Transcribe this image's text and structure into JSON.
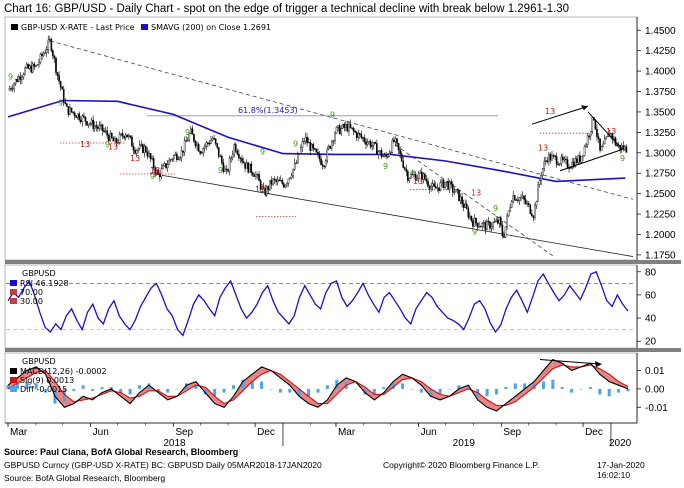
{
  "title": "Chart 16: GBP/USD - Daily Chart - spot on the edge of trigger a technical decline with break below 1.2961-1.30",
  "colors": {
    "price": "#000000",
    "sma": "#1a10c8",
    "rsi": "#1a10c8",
    "macd": "#000000",
    "signal": "#d01010",
    "diff": "#4fa3e8",
    "td_green": "#3a9a1a",
    "td_red": "#d01010",
    "ref_red": "#c04040",
    "fib": "#8888dd"
  },
  "chart_data": [
    {
      "type": "candlestick",
      "legend": {
        "price": "GBP-USD X-RATE - Last Price",
        "sma": "SMAVG (200)  on Close 1.2691"
      },
      "ylim": [
        1.17,
        1.465
      ],
      "yticks": [
        "1.4500",
        "1.4250",
        "1.4000",
        "1.3750",
        "1.3500",
        "1.3250",
        "1.3000",
        "1.2750",
        "1.2500",
        "1.2250",
        "1.2000",
        "1.1750"
      ],
      "x_months": [
        "Mar",
        "Jun",
        "Sep",
        "Dec",
        "Mar",
        "Jun",
        "Sep",
        "Dec"
      ],
      "x_years": [
        "2018",
        "2019",
        "2020"
      ],
      "close_path": [
        [
          "2018-03-05",
          1.382
        ],
        [
          "2018-03-20",
          1.402
        ],
        [
          "2018-04-01",
          1.405
        ],
        [
          "2018-04-17",
          1.437
        ],
        [
          "2018-04-25",
          1.396
        ],
        [
          "2018-05-05",
          1.353
        ],
        [
          "2018-05-15",
          1.348
        ],
        [
          "2018-06-01",
          1.336
        ],
        [
          "2018-06-15",
          1.327
        ],
        [
          "2018-06-28",
          1.312
        ],
        [
          "2018-07-10",
          1.325
        ],
        [
          "2018-07-20",
          1.305
        ],
        [
          "2018-08-01",
          1.305
        ],
        [
          "2018-08-15",
          1.272
        ],
        [
          "2018-08-31",
          1.295
        ],
        [
          "2018-09-10",
          1.3
        ],
        [
          "2018-09-20",
          1.325
        ],
        [
          "2018-10-01",
          1.303
        ],
        [
          "2018-10-15",
          1.318
        ],
        [
          "2018-10-30",
          1.273
        ],
        [
          "2018-11-08",
          1.31
        ],
        [
          "2018-11-20",
          1.285
        ],
        [
          "2018-12-01",
          1.275
        ],
        [
          "2018-12-11",
          1.25
        ],
        [
          "2018-12-20",
          1.265
        ],
        [
          "2019-01-03",
          1.262
        ],
        [
          "2019-01-15",
          1.285
        ],
        [
          "2019-01-25",
          1.318
        ],
        [
          "2019-02-05",
          1.3
        ],
        [
          "2019-02-15",
          1.287
        ],
        [
          "2019-02-28",
          1.326
        ],
        [
          "2019-03-13",
          1.332
        ],
        [
          "2019-03-25",
          1.322
        ],
        [
          "2019-04-10",
          1.31
        ],
        [
          "2019-04-25",
          1.293
        ],
        [
          "2019-05-05",
          1.315
        ],
        [
          "2019-05-20",
          1.272
        ],
        [
          "2019-06-05",
          1.272
        ],
        [
          "2019-06-18",
          1.255
        ],
        [
          "2019-07-01",
          1.264
        ],
        [
          "2019-07-15",
          1.248
        ],
        [
          "2019-07-31",
          1.216
        ],
        [
          "2019-08-15",
          1.21
        ],
        [
          "2019-08-30",
          1.216
        ],
        [
          "2019-09-03",
          1.196
        ],
        [
          "2019-09-13",
          1.248
        ],
        [
          "2019-09-25",
          1.243
        ],
        [
          "2019-10-07",
          1.225
        ],
        [
          "2019-10-15",
          1.275
        ],
        [
          "2019-10-22",
          1.295
        ],
        [
          "2019-11-01",
          1.292
        ],
        [
          "2019-11-15",
          1.285
        ],
        [
          "2019-11-28",
          1.293
        ],
        [
          "2019-12-05",
          1.315
        ],
        [
          "2019-12-13",
          1.344
        ],
        [
          "2019-12-20",
          1.3
        ],
        [
          "2019-12-31",
          1.325
        ],
        [
          "2020-01-08",
          1.308
        ],
        [
          "2020-01-17",
          1.305
        ]
      ],
      "sma200": [
        [
          "2018-03-01",
          1.344
        ],
        [
          "2018-05-01",
          1.364
        ],
        [
          "2018-07-01",
          1.363
        ],
        [
          "2018-09-01",
          1.347
        ],
        [
          "2018-11-01",
          1.319
        ],
        [
          "2019-01-01",
          1.299
        ],
        [
          "2019-03-01",
          1.298
        ],
        [
          "2019-05-01",
          1.298
        ],
        [
          "2019-07-01",
          1.29
        ],
        [
          "2019-09-01",
          1.278
        ],
        [
          "2019-11-01",
          1.265
        ],
        [
          "2020-01-17",
          1.269
        ]
      ],
      "annotations": [
        {
          "type": "text",
          "text": "61.8%(1.3453)",
          "y": 1.3453
        },
        {
          "type": "text",
          "text": "13"
        },
        {
          "type": "text",
          "text": "9"
        }
      ]
    },
    {
      "type": "line",
      "title": "GBPUSD",
      "legend": [
        "RSI 46.1928",
        "70.00",
        "30.00"
      ],
      "ylim": [
        15,
        85
      ],
      "yticks": [
        "80",
        "60",
        "40",
        "20"
      ],
      "reference_lines": [
        70,
        30
      ],
      "values": [
        55,
        62,
        58,
        66,
        72,
        60,
        45,
        32,
        28,
        35,
        30,
        42,
        48,
        38,
        30,
        45,
        52,
        40,
        35,
        48,
        55,
        42,
        35,
        30,
        38,
        50,
        58,
        66,
        70,
        60,
        48,
        42,
        30,
        25,
        38,
        52,
        60,
        55,
        48,
        42,
        58,
        66,
        72,
        60,
        48,
        40,
        45,
        52,
        62,
        68,
        55,
        45,
        40,
        35,
        42,
        58,
        68,
        60,
        52,
        48,
        62,
        70,
        72,
        58,
        50,
        55,
        62,
        70,
        60,
        52,
        45,
        58,
        62,
        55,
        48,
        40,
        35,
        48,
        55,
        62,
        58,
        50,
        45,
        40,
        38,
        35,
        30,
        40,
        52,
        55,
        48,
        36,
        28,
        34,
        48,
        58,
        64,
        55,
        45,
        58,
        72,
        78,
        70,
        62,
        55,
        60,
        68,
        62,
        56,
        66,
        78,
        80,
        68,
        55,
        50,
        60,
        52,
        46
      ]
    },
    {
      "type": "line",
      "title": "GBPUSD",
      "legend": [
        "MACD(12,26) -0.0002",
        "Sig(9)  0.0013",
        "Diff  -0.0015"
      ],
      "ylim": [
        -0.018,
        0.019
      ],
      "yticks": [
        "0.01",
        "0.00",
        "-0.01"
      ],
      "macd": [
        0.002,
        0.006,
        0.01,
        0.012,
        0.008,
        -0.004,
        -0.01,
        -0.008,
        -0.004,
        -0.006,
        -0.002,
        0.0,
        -0.004,
        -0.008,
        -0.002,
        0.002,
        -0.002,
        -0.006,
        -0.004,
        0.002,
        0.004,
        -0.002,
        -0.008,
        -0.01,
        -0.004,
        0.004,
        0.008,
        0.012,
        0.01,
        0.006,
        0.002,
        -0.004,
        -0.008,
        -0.01,
        -0.006,
        0.002,
        0.006,
        0.004,
        -0.002,
        -0.006,
        -0.002,
        0.004,
        0.008,
        0.006,
        0.002,
        -0.004,
        -0.006,
        -0.004,
        0.0,
        0.002,
        -0.006,
        -0.01,
        -0.012,
        -0.008,
        -0.004,
        0.0,
        0.004,
        0.01,
        0.016,
        0.014,
        0.01,
        0.012,
        0.014,
        0.008,
        0.004,
        0.002,
        -0.0
      ],
      "signal": [
        0.0,
        0.003,
        0.006,
        0.009,
        0.01,
        0.004,
        -0.003,
        -0.007,
        -0.006,
        -0.005,
        -0.003,
        -0.001,
        -0.002,
        -0.005,
        -0.004,
        -0.001,
        -0.001,
        -0.004,
        -0.004,
        -0.001,
        0.002,
        0.001,
        -0.004,
        -0.008,
        -0.006,
        -0.001,
        0.004,
        0.008,
        0.01,
        0.008,
        0.004,
        0.0,
        -0.004,
        -0.008,
        -0.008,
        -0.003,
        0.002,
        0.004,
        0.001,
        -0.003,
        -0.003,
        0.001,
        0.005,
        0.006,
        0.004,
        0.0,
        -0.003,
        -0.004,
        -0.002,
        0.0,
        -0.002,
        -0.006,
        -0.009,
        -0.009,
        -0.007,
        -0.003,
        0.001,
        0.006,
        0.011,
        0.013,
        0.012,
        0.012,
        0.013,
        0.011,
        0.008,
        0.004,
        0.0013
      ]
    }
  ],
  "footer": {
    "source_bold": "Source: Paul Ciana, BofA Global Research, Bloomberg",
    "line2_left": "GBPUSD Curncy (GBP-USD X-RATE) BC: GBPUSD Daily  05MAR2018-17JAN2020",
    "line2_mid": "Copyright© 2020 Bloomberg Finance L.P.",
    "line2_right": "17-Jan-2020 16:02:10",
    "line3": "Source: BofA Global Research, Bloomberg"
  }
}
